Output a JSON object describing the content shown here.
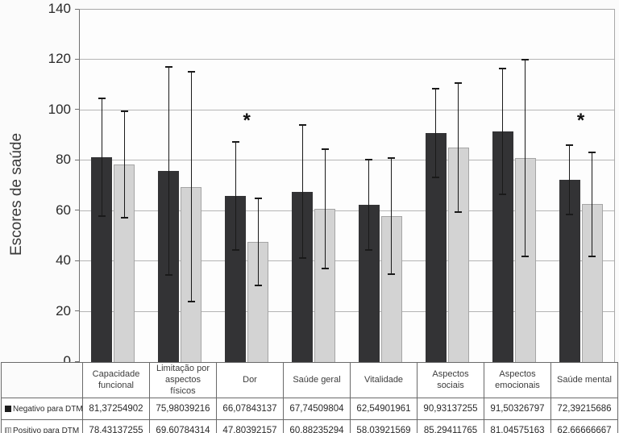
{
  "chart_data": {
    "type": "bar",
    "title": "",
    "xlabel": "",
    "ylabel": "Escores de saúde",
    "ylim": [
      0,
      140
    ],
    "yticks": [
      0,
      20,
      40,
      60,
      80,
      100,
      120,
      140
    ],
    "grid": true,
    "legend_position": "table-left",
    "categories": [
      "Capacidade funcional",
      "Limitação por aspectos físicos",
      "Dor",
      "Saúde geral",
      "Vitalidade",
      "Aspectos sociais",
      "Aspectos emocionais",
      "Saúde mental"
    ],
    "series": [
      {
        "name": "Negativo para DTM",
        "color": "#333335",
        "values": [
          81.37254902,
          75.98039216,
          66.07843137,
          67.74509804,
          62.54901961,
          90.93137255,
          91.50326797,
          72.39215686
        ],
        "errors": [
          23.6,
          41.6,
          21.8,
          26.7,
          18.2,
          17.9,
          25.3,
          14.2
        ],
        "display_values": [
          "81,37254902",
          "75,98039216",
          "66,07843137",
          "67,74509804",
          "62,54901961",
          "90,93137255",
          "91,50326797",
          "72,39215686"
        ]
      },
      {
        "name": "Positivo para DTM",
        "color": "#d3d3d3",
        "border_color": "#a5a5a5",
        "values": [
          78.43137255,
          69.60784314,
          47.80392157,
          60.88235294,
          58.03921569,
          85.29411765,
          81.04575163,
          62.66666667
        ],
        "errors": [
          21.5,
          45.9,
          17.7,
          24.1,
          23.3,
          25.9,
          39.5,
          20.9
        ],
        "display_values": [
          "78,43137255",
          "69,60784314",
          "47,80392157",
          "60,88235294",
          "58,03921569",
          "85,29411765",
          "81,04575163",
          "62,66666667"
        ]
      }
    ],
    "significance": {
      "marker": "*",
      "category_indices": [
        2,
        7
      ]
    }
  },
  "colors": {
    "gridline": "#b5b5b5",
    "axis": "#5a5a5a",
    "table_border": "#6a6a6a",
    "error_bar": "#1a1a1a",
    "background": "#fbfbfb"
  }
}
